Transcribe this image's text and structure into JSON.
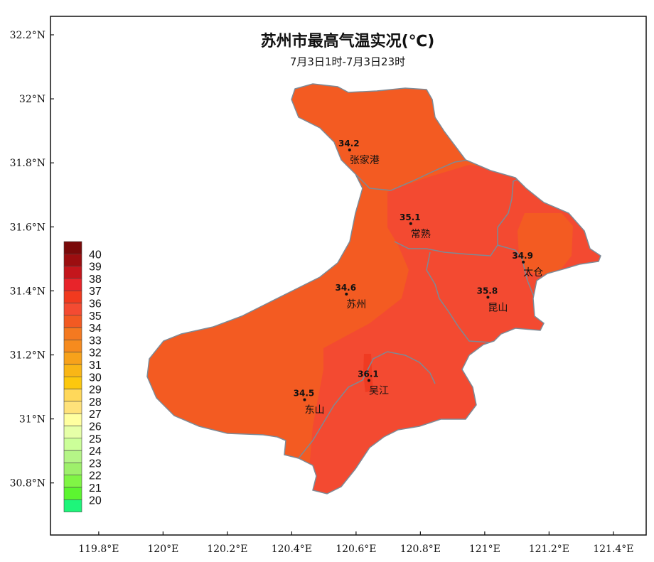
{
  "title": "苏州市最高气温实况(℃)",
  "subtitle": "7月3日1时-7月3日23时",
  "axes": {
    "y_ticks": [
      {
        "lat": 32.2,
        "label": "32.2°N"
      },
      {
        "lat": 32.0,
        "label": "32°N"
      },
      {
        "lat": 31.8,
        "label": "31.8°N"
      },
      {
        "lat": 31.6,
        "label": "31.6°N"
      },
      {
        "lat": 31.4,
        "label": "31.4°N"
      },
      {
        "lat": 31.2,
        "label": "31.2°N"
      },
      {
        "lat": 31.0,
        "label": "31°N"
      },
      {
        "lat": 30.8,
        "label": "30.8°N"
      }
    ],
    "x_ticks": [
      {
        "lon": 119.8,
        "label": "119.8°E"
      },
      {
        "lon": 120.0,
        "label": "120°E"
      },
      {
        "lon": 120.2,
        "label": "120.2°E"
      },
      {
        "lon": 120.4,
        "label": "120.4°E"
      },
      {
        "lon": 120.6,
        "label": "120.6°E"
      },
      {
        "lon": 120.8,
        "label": "120.8°E"
      },
      {
        "lon": 121.0,
        "label": "121°E"
      },
      {
        "lon": 121.2,
        "label": "121.2°E"
      },
      {
        "lon": 121.4,
        "label": "121.4°E"
      }
    ]
  },
  "stations": [
    {
      "name": "张家港",
      "value": "34.2",
      "lon": 120.58,
      "lat": 31.84
    },
    {
      "name": "常熟",
      "value": "35.1",
      "lon": 120.77,
      "lat": 31.61
    },
    {
      "name": "太仓",
      "value": "34.9",
      "lon": 121.12,
      "lat": 31.49
    },
    {
      "name": "苏州",
      "value": "34.6",
      "lon": 120.57,
      "lat": 31.39
    },
    {
      "name": "昆山",
      "value": "35.8",
      "lon": 121.01,
      "lat": 31.38
    },
    {
      "name": "吴江",
      "value": "36.1",
      "lon": 120.64,
      "lat": 31.12
    },
    {
      "name": "东山",
      "value": "34.5",
      "lon": 120.44,
      "lat": 31.06
    }
  ],
  "legend": [
    {
      "label": "40",
      "color": "#7a0a0a"
    },
    {
      "label": "39",
      "color": "#9c0e10"
    },
    {
      "label": "38",
      "color": "#c4161c"
    },
    {
      "label": "37",
      "color": "#e8242a"
    },
    {
      "label": "36",
      "color": "#f13a1f"
    },
    {
      "label": "35",
      "color": "#f44b32"
    },
    {
      "label": "34",
      "color": "#f25a22"
    },
    {
      "label": "33",
      "color": "#f47920"
    },
    {
      "label": "32",
      "color": "#f68b1e"
    },
    {
      "label": "31",
      "color": "#f7a21b"
    },
    {
      "label": "30",
      "color": "#f9b616"
    },
    {
      "label": "29",
      "color": "#fcc80e"
    },
    {
      "label": "28",
      "color": "#ffd85a"
    },
    {
      "label": "27",
      "color": "#ffe27a"
    },
    {
      "label": "26",
      "color": "#ffffa0"
    },
    {
      "label": "25",
      "color": "#e6ffa8"
    },
    {
      "label": "24",
      "color": "#ccff99"
    },
    {
      "label": "23",
      "color": "#b5f587"
    },
    {
      "label": "22",
      "color": "#9ef06b"
    },
    {
      "label": "21",
      "color": "#80f545"
    },
    {
      "label": "20",
      "color": "#5cf530"
    },
    {
      "label": "",
      "color": "#1ef57a"
    }
  ],
  "colors": {
    "zone_34": "#f35b22",
    "zone_35": "#f34a31",
    "zone_36": "#ef3b22",
    "boundary": "#7d8a96"
  }
}
